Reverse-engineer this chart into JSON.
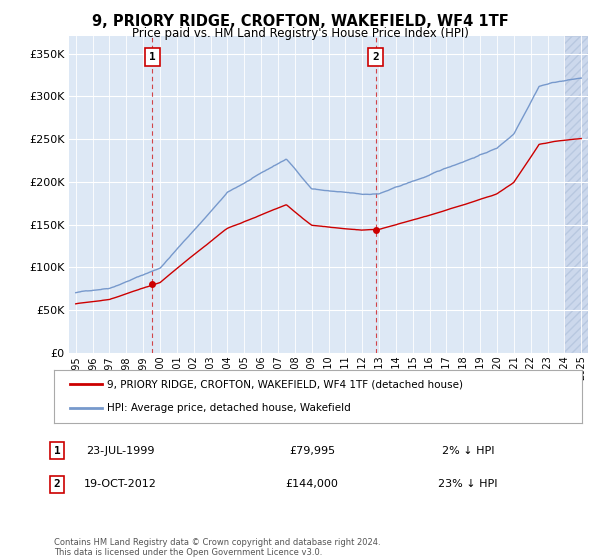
{
  "title": "9, PRIORY RIDGE, CROFTON, WAKEFIELD, WF4 1TF",
  "subtitle": "Price paid vs. HM Land Registry's House Price Index (HPI)",
  "ylim": [
    0,
    370000
  ],
  "yticks": [
    0,
    50000,
    100000,
    150000,
    200000,
    250000,
    300000,
    350000
  ],
  "ytick_labels": [
    "£0",
    "£50K",
    "£100K",
    "£150K",
    "£200K",
    "£250K",
    "£300K",
    "£350K"
  ],
  "xlim_start": 1994.6,
  "xlim_end": 2025.4,
  "transaction1": {
    "date_num": 1999.55,
    "price": 79995,
    "label": "1",
    "date_str": "23-JUL-1999",
    "price_str": "£79,995",
    "hpi_str": "2% ↓ HPI"
  },
  "transaction2": {
    "date_num": 2012.8,
    "price": 144000,
    "label": "2",
    "date_str": "19-OCT-2012",
    "price_str": "£144,000",
    "hpi_str": "23% ↓ HPI"
  },
  "legend_property": "9, PRIORY RIDGE, CROFTON, WAKEFIELD, WF4 1TF (detached house)",
  "legend_hpi": "HPI: Average price, detached house, Wakefield",
  "footnote": "Contains HM Land Registry data © Crown copyright and database right 2024.\nThis data is licensed under the Open Government Licence v3.0.",
  "property_color": "#cc0000",
  "hpi_color": "#7799cc",
  "background_color": "#dde8f5",
  "marker_box_color": "#cc0000",
  "grid_color": "#ffffff"
}
